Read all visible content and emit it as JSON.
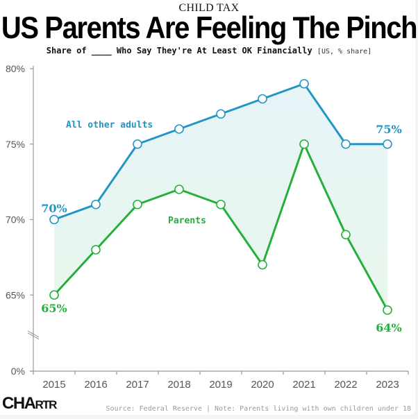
{
  "header": {
    "kicker": "CHILD TAX",
    "title": "US Parents Are Feeling The Pinch",
    "subtitle_main": "Share of ____ Who Say They're At Least OK Financially",
    "subtitle_unit": "[US, % share]"
  },
  "footer": {
    "logo_main": "CHA",
    "logo_tail": "RTR",
    "source": "Source: Federal Reserve | Note: Parents living with own children under 18"
  },
  "colors": {
    "adults": "#2196c4",
    "parents": "#22b03a",
    "axis": "#999999",
    "fill_top": "#e6f4f8",
    "fill_bottom": "#e8f7ec"
  },
  "chart_data": {
    "type": "line",
    "title": "US Parents Are Feeling The Pinch",
    "subtitle": "Share of ____ Who Say They're At Least OK Financially [US, % share]",
    "xlabel": "",
    "ylabel": "",
    "x": [
      "2015",
      "2016",
      "2017",
      "2018",
      "2019",
      "2020",
      "2021",
      "2022",
      "2023"
    ],
    "series": [
      {
        "name": "All other adults",
        "values": [
          70,
          71,
          75,
          76,
          77,
          78,
          79,
          75,
          75
        ]
      },
      {
        "name": "Parents",
        "values": [
          65,
          68,
          71,
          72,
          71,
          67,
          75,
          69,
          64
        ]
      }
    ],
    "yticks": [
      0,
      65,
      70,
      75,
      80
    ],
    "ytick_labels": [
      "0%",
      "65%",
      "70%",
      "75%",
      "80%"
    ],
    "ylim": [
      60,
      80
    ],
    "axis_break": true,
    "grid": false,
    "annotations": {
      "adults_start": "70%",
      "adults_end": "75%",
      "parents_start": "65%",
      "parents_end": "64%"
    },
    "legend": "inline labels"
  }
}
